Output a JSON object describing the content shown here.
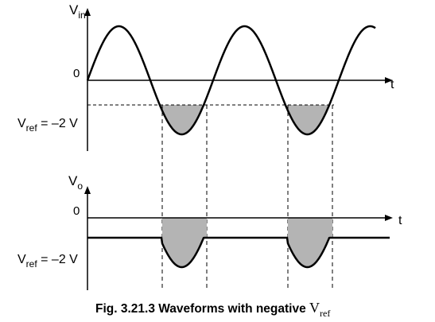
{
  "top_graph": {
    "y_axis_label": "V",
    "y_axis_sub": "in",
    "x_axis_label": "t",
    "zero_label": "0",
    "vref_label": "V",
    "vref_sub": "ref",
    "vref_value": " = –2 V"
  },
  "bottom_graph": {
    "y_axis_label": "V",
    "y_axis_sub": "o",
    "x_axis_label": "t",
    "zero_label": "0",
    "vref_label": "V",
    "vref_sub": "ref",
    "vref_value": " = –2 V"
  },
  "caption": {
    "text": "Fig. 3.21.3  Waveforms with negative ",
    "var": "V",
    "var_sub": "ref"
  },
  "colors": {
    "shade": "#b4b4b4",
    "line": "#000000"
  }
}
